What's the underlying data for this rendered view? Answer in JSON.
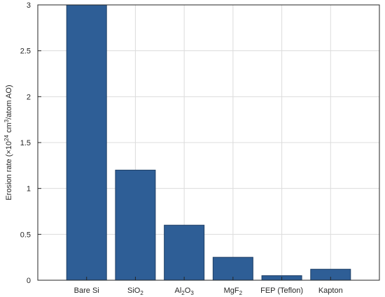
{
  "chart_data": {
    "type": "bar",
    "title": "",
    "xlabel": "",
    "ylabel": "Erosion rate (×10²⁴ cm³/atom AO)",
    "ylabel_parts": {
      "prefix": "Erosion rate (×10",
      "exp": "24",
      "mid": " cm",
      "unit_exp": "3",
      "suffix": "/atom AO)"
    },
    "categories": [
      "Bare Si",
      "SiO₂",
      "Al₂O₃",
      "MgF₂",
      "FEP (Teflon)",
      "Kapton"
    ],
    "category_parts": [
      [
        {
          "t": "Bare Si"
        }
      ],
      [
        {
          "t": "SiO"
        },
        {
          "t": "2",
          "sub": true
        }
      ],
      [
        {
          "t": "Al"
        },
        {
          "t": "2",
          "sub": true
        },
        {
          "t": "O"
        },
        {
          "t": "3",
          "sub": true
        }
      ],
      [
        {
          "t": "MgF"
        },
        {
          "t": "2",
          "sub": true
        }
      ],
      [
        {
          "t": "FEP (Teflon)"
        }
      ],
      [
        {
          "t": "Kapton"
        }
      ]
    ],
    "values": [
      3.0,
      1.2,
      0.6,
      0.25,
      0.05,
      0.12
    ],
    "ylim": [
      0,
      3
    ],
    "yticks": [
      0,
      0.5,
      1,
      1.5,
      2,
      2.5,
      3
    ],
    "ytick_labels": [
      "0",
      "0.5",
      "1",
      "1.5",
      "2",
      "2.5",
      "3"
    ],
    "grid": true,
    "bar_color": "#2e5e96",
    "bar_edge_color": "#1f3f66"
  }
}
